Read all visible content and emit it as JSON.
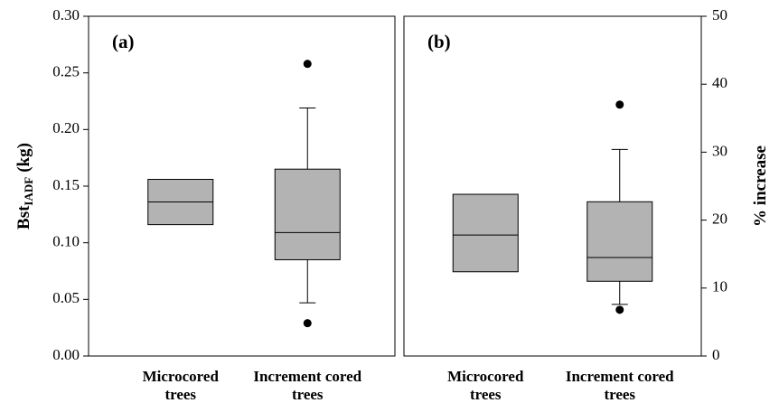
{
  "chart_data": [
    {
      "type": "box",
      "panel_label": "(a)",
      "ylabel": {
        "main": "Bst",
        "sub": "IADF",
        "unit": "(kg)"
      },
      "yaxis_side": "left",
      "categories": [
        "Microcored trees",
        "Increment cored trees"
      ],
      "color": "#b3b3b3",
      "boxes": [
        {
          "q1": 0.116,
          "med": 0.136,
          "q3": 0.156
        },
        {
          "whislo": 0.047,
          "q1": 0.085,
          "med": 0.109,
          "q3": 0.165,
          "whishi": 0.219,
          "fliers": [
            0.029,
            0.258
          ]
        }
      ],
      "ylim": [
        0,
        0.3
      ],
      "yticks": [
        {
          "value": 0,
          "label": "0.00"
        },
        0.05,
        {
          "value": 0.1,
          "label": "0.10"
        },
        0.15,
        {
          "value": 0.2,
          "label": "0.20"
        },
        0.25,
        {
          "value": 0.3,
          "label": "0.30"
        }
      ]
    },
    {
      "type": "box",
      "panel_label": "(b)",
      "ylabel": {
        "main": "% increase"
      },
      "yaxis_side": "right",
      "categories": [
        "Microcored trees",
        "Increment cored trees"
      ],
      "color": "#b3b3b3",
      "boxes": [
        {
          "q1": 12.4,
          "med": 17.8,
          "q3": 23.8
        },
        {
          "whislo": 7.6,
          "q1": 11.0,
          "med": 14.5,
          "q3": 22.7,
          "whishi": 30.4,
          "fliers": [
            6.8,
            37.0
          ]
        }
      ],
      "ylim": [
        0,
        50
      ],
      "yticks": [
        0,
        10,
        20,
        30,
        40,
        50
      ]
    }
  ]
}
